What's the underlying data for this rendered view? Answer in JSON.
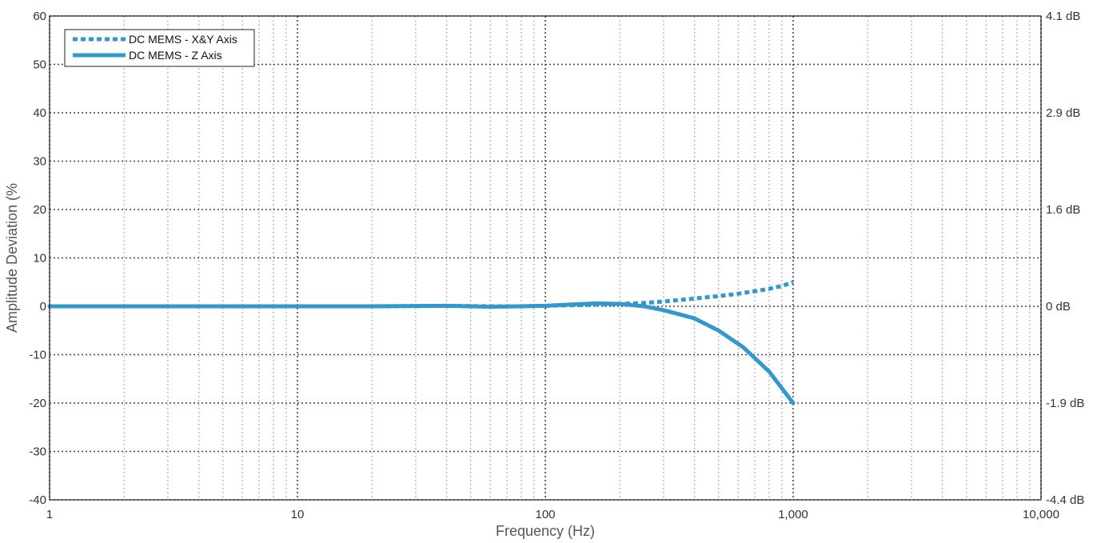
{
  "chart_data": {
    "type": "line",
    "xlabel": "Frequency (Hz)",
    "ylabel": "Amplitude Deviation (%",
    "x_scale": "log",
    "xlim": [
      1,
      10000
    ],
    "ylim": [
      -40,
      60
    ],
    "x_ticks": [
      {
        "value": 1,
        "label": "1"
      },
      {
        "value": 10,
        "label": "10"
      },
      {
        "value": 100,
        "label": "100"
      },
      {
        "value": 1000,
        "label": "1,000"
      },
      {
        "value": 10000,
        "label": "10,000"
      }
    ],
    "y_ticks": [
      {
        "value": 60,
        "label": "60"
      },
      {
        "value": 50,
        "label": "50"
      },
      {
        "value": 40,
        "label": "40"
      },
      {
        "value": 30,
        "label": "30"
      },
      {
        "value": 20,
        "label": "20"
      },
      {
        "value": 10,
        "label": "10"
      },
      {
        "value": 0,
        "label": "0"
      },
      {
        "value": -10,
        "label": "-10"
      },
      {
        "value": -20,
        "label": "-20"
      },
      {
        "value": -30,
        "label": "-30"
      },
      {
        "value": -40,
        "label": "-40"
      }
    ],
    "y2_ticks": [
      {
        "value": 60,
        "label": "4.1 dB"
      },
      {
        "value": 40,
        "label": "2.9 dB"
      },
      {
        "value": 20,
        "label": "1.6 dB"
      },
      {
        "value": 0,
        "label": "0 dB"
      },
      {
        "value": -20,
        "label": "-1.9 dB"
      },
      {
        "value": -40,
        "label": "-4.4 dB"
      }
    ],
    "grid": true,
    "legend_position": "top-left",
    "series": [
      {
        "name": "DC MEMS - X&Y Axis",
        "style": "dotted",
        "color": "#3399cc",
        "x": [
          1,
          2,
          5,
          10,
          20,
          40,
          60,
          80,
          100,
          150,
          200,
          250,
          300,
          400,
          500,
          600,
          700,
          800,
          900,
          1000
        ],
        "values": [
          0,
          0,
          0,
          0,
          0,
          0.1,
          0,
          0,
          0.1,
          0.3,
          0.5,
          0.7,
          1.0,
          1.6,
          2.1,
          2.6,
          3.1,
          3.6,
          4.2,
          5.0
        ]
      },
      {
        "name": "DC MEMS - Z Axis",
        "style": "solid",
        "color": "#3399cc",
        "x": [
          1,
          2,
          5,
          10,
          20,
          40,
          60,
          80,
          100,
          130,
          160,
          200,
          250,
          300,
          400,
          500,
          630,
          800,
          1000
        ],
        "values": [
          0,
          0,
          0,
          0,
          0,
          0.1,
          -0.1,
          0,
          0.1,
          0.4,
          0.6,
          0.5,
          0,
          -0.8,
          -2.5,
          -5,
          -8.5,
          -13.5,
          -20
        ]
      }
    ]
  }
}
